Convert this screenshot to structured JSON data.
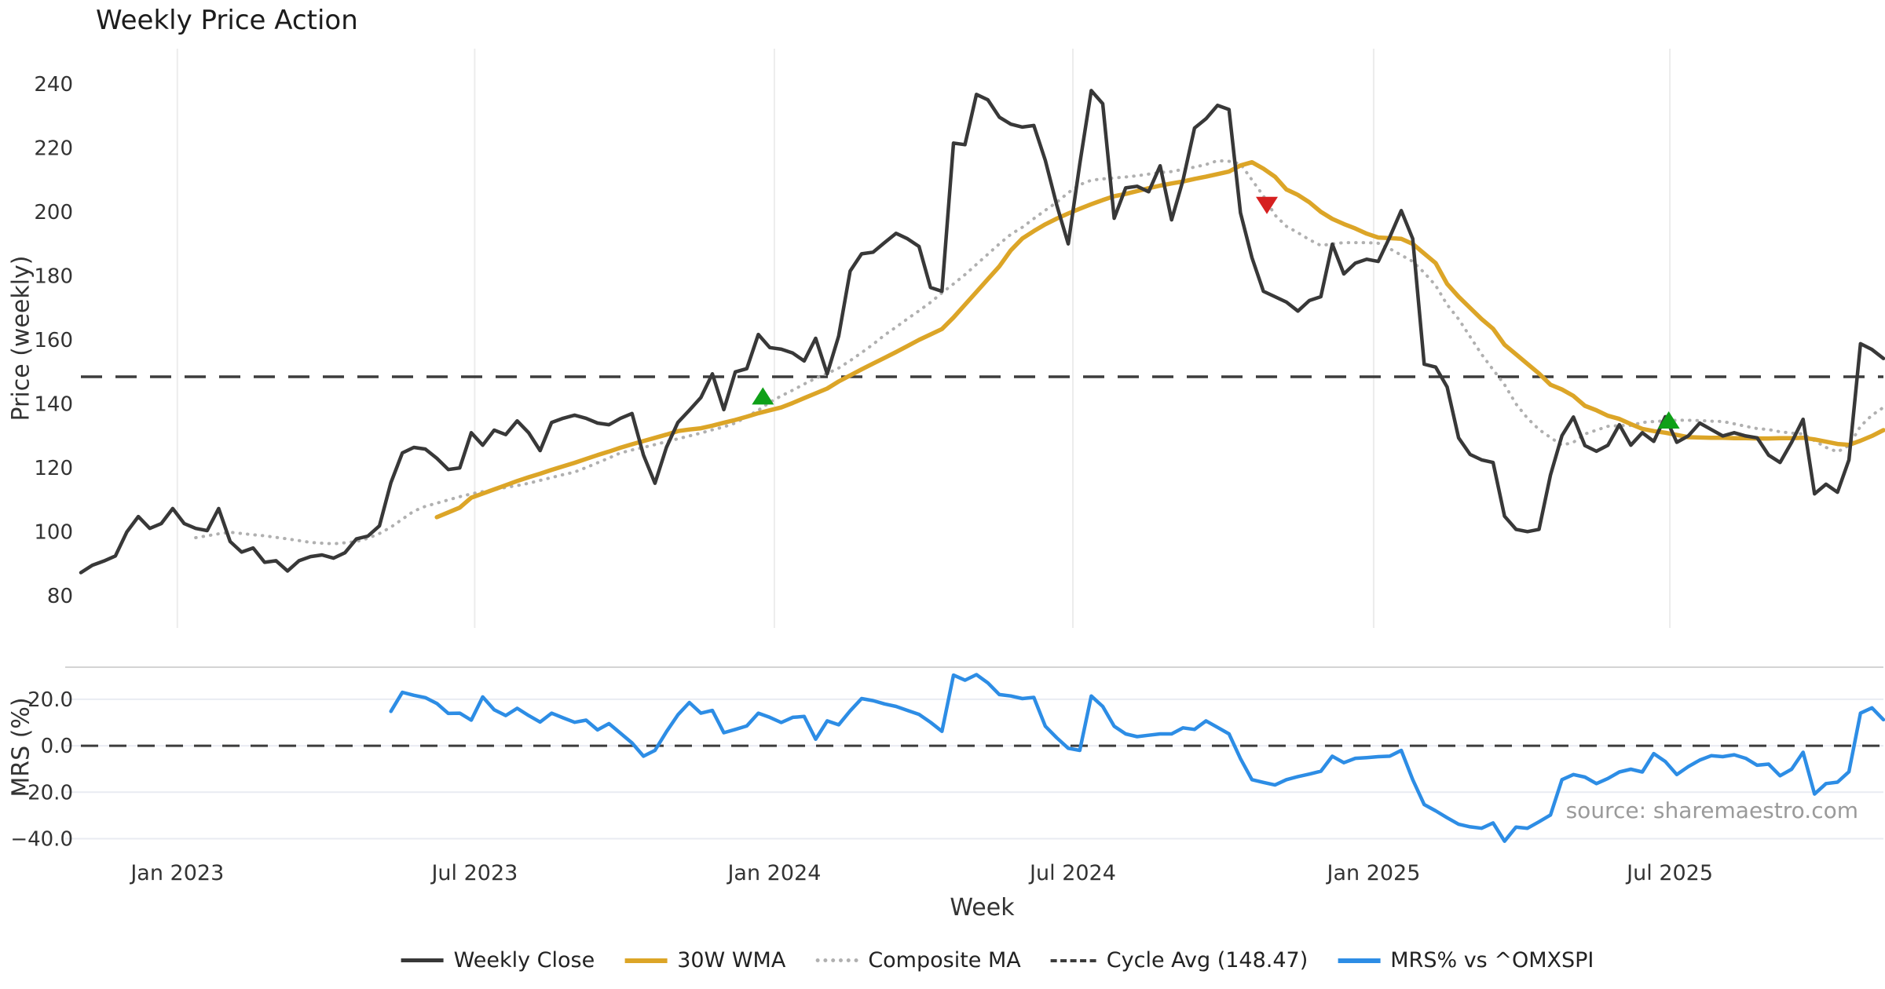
{
  "title": "Weekly Price Action",
  "source_note": "source: sharemaestro.com",
  "colors": {
    "close": "#383838",
    "wma": "#dca527",
    "composite": "#b0b0b0",
    "cycle_avg": "#3c3c3c",
    "mrs": "#2d8de5",
    "buy_marker": "#0fa018",
    "sell_marker": "#d62020",
    "grid_top": "#ececec",
    "grid_bottom": "#e9ebf2",
    "spine": "#d4d4d4",
    "tick_text": "#333333",
    "source_text": "#9a9a9a"
  },
  "legend": [
    {
      "label": "Weekly Close",
      "style": "solid",
      "color": "#383838"
    },
    {
      "label": "30W WMA",
      "style": "solid",
      "color": "#dca527"
    },
    {
      "label": "Composite MA",
      "style": "dotted",
      "color": "#b0b0b0"
    },
    {
      "label": "Cycle Avg (148.47)",
      "style": "dashed",
      "color": "#3c3c3c"
    },
    {
      "label": "MRS% vs ^OMXSPI",
      "style": "solid",
      "color": "#2d8de5"
    }
  ],
  "chart_data": [
    {
      "type": "line",
      "panel": "price",
      "title": "Weekly Price Action",
      "xlabel": "Week",
      "ylabel": "Price (weekly)",
      "x_start_date": "2022-11-06",
      "x_interval": "weekly",
      "ylim": [
        70,
        251
      ],
      "yticks": [
        240,
        220,
        200,
        180,
        160,
        140,
        120,
        100,
        80
      ],
      "xticks": [
        {
          "label": "Jan 2023",
          "week": 8.4
        },
        {
          "label": "Jul 2023",
          "week": 34.3
        },
        {
          "label": "Jan 2024",
          "week": 60.4
        },
        {
          "label": "Jul 2024",
          "week": 86.4
        },
        {
          "label": "Jan 2025",
          "week": 112.6
        },
        {
          "label": "Jul 2025",
          "week": 138.4
        }
      ],
      "cycle_avg": 148.47,
      "grid": "vertical",
      "legend_position": "bottom",
      "series": [
        {
          "name": "Weekly Close",
          "start_week": 0,
          "values": [
            87.3,
            89.6,
            90.9,
            92.5,
            100.0,
            104.8,
            101.1,
            102.6,
            107.3,
            102.6,
            101.1,
            100.4,
            107.3,
            97.0,
            93.7,
            95.0,
            90.5,
            91.0,
            87.8,
            91.0,
            92.3,
            92.8,
            91.8,
            93.5,
            97.8,
            98.7,
            101.9,
            115.4,
            124.7,
            126.4,
            125.9,
            123.0,
            119.5,
            120.0,
            131.0,
            127.1,
            131.8,
            130.4,
            134.7,
            131.0,
            125.4,
            134.2,
            135.5,
            136.5,
            135.5,
            134.0,
            133.5,
            135.5,
            137.0,
            124.0,
            115.2,
            126.4,
            134.2,
            138.0,
            142.0,
            149.4,
            138.2,
            150.0,
            151.0,
            161.7,
            157.6,
            157.1,
            155.9,
            153.4,
            160.5,
            149.4,
            161.2,
            181.5,
            186.9,
            187.4,
            190.4,
            193.3,
            191.6,
            189.2,
            176.4,
            175.2,
            221.5,
            221.0,
            236.7,
            235.0,
            229.6,
            227.4,
            226.5,
            227.0,
            216.1,
            202.1,
            190.0,
            215.0,
            237.9,
            233.8,
            198.0,
            207.5,
            208.0,
            206.3,
            214.4,
            197.5,
            210.0,
            226.2,
            229.1,
            233.3,
            232.0,
            199.7,
            185.7,
            175.2,
            173.5,
            171.8,
            169.0,
            172.3,
            173.5,
            189.9,
            180.6,
            184.0,
            185.2,
            184.5,
            192.1,
            200.4,
            191.6,
            152.4,
            151.5,
            145.3,
            129.4,
            124.2,
            122.5,
            121.7,
            104.9,
            100.8,
            100.1,
            100.8,
            117.8,
            130.1,
            135.9,
            127.0,
            125.2,
            127.1,
            133.5,
            127.1,
            131.0,
            128.3,
            136.0,
            128.0,
            130.0,
            134.0,
            132.0,
            130.0,
            131.0,
            130.0,
            129.4,
            124.0,
            121.7,
            128.0,
            135.2,
            111.9,
            114.9,
            112.4,
            122.5,
            158.8,
            157.0,
            154.2
          ]
        },
        {
          "name": "30W WMA",
          "start_week": 31,
          "values": [
            104.6,
            106.1,
            107.6,
            110.7,
            112.0,
            113.3,
            114.6,
            115.9,
            117.1,
            118.2,
            119.4,
            120.5,
            121.6,
            122.8,
            124.0,
            125.1,
            126.3,
            127.4,
            128.4,
            129.4,
            130.4,
            131.5,
            132.0,
            132.4,
            133.2,
            134.1,
            135.0,
            136.0,
            137.1,
            138.0,
            138.9,
            140.3,
            141.8,
            143.3,
            144.8,
            147.0,
            148.9,
            150.8,
            152.6,
            154.4,
            156.2,
            158.1,
            160.0,
            161.7,
            163.4,
            167.0,
            171.0,
            175.0,
            179.0,
            183.0,
            188.0,
            191.7,
            194.0,
            196.1,
            197.9,
            199.5,
            201.0,
            202.4,
            203.7,
            204.9,
            205.6,
            206.5,
            207.4,
            208.2,
            208.9,
            209.5,
            210.3,
            211.0,
            211.8,
            212.6,
            214.5,
            215.5,
            213.5,
            211.0,
            207.0,
            205.3,
            203.0,
            200.0,
            197.8,
            196.2,
            194.8,
            193.2,
            192.0,
            191.8,
            191.6,
            190.0,
            187.0,
            184.0,
            177.5,
            173.5,
            170.0,
            166.5,
            163.5,
            158.5,
            155.5,
            152.5,
            149.5,
            146.0,
            144.5,
            142.5,
            139.4,
            138.0,
            136.3,
            135.3,
            133.7,
            132.2,
            131.5,
            131.0,
            130.3,
            129.6,
            129.5,
            129.4,
            129.4,
            129.3,
            129.3,
            129.2,
            129.2,
            129.3,
            129.3,
            129.4,
            128.9,
            128.2,
            127.5,
            127.2,
            128.5,
            130.0,
            131.8
          ]
        },
        {
          "name": "Composite MA",
          "start_week": 10,
          "values": [
            98.2,
            98.8,
            99.4,
            99.9,
            99.5,
            99.1,
            98.8,
            98.3,
            97.8,
            97.3,
            96.7,
            96.5,
            96.3,
            96.6,
            97.0,
            98.0,
            99.5,
            101.5,
            104.0,
            106.5,
            108.0,
            109.0,
            110.0,
            111.0,
            111.9,
            112.6,
            113.2,
            113.9,
            114.5,
            115.2,
            116.1,
            117.0,
            117.9,
            118.7,
            120.1,
            121.6,
            123.1,
            124.7,
            125.6,
            126.4,
            127.3,
            128.2,
            129.1,
            130.0,
            130.9,
            131.9,
            132.8,
            134.0,
            136.0,
            138.0,
            140.5,
            142.5,
            144.3,
            146.2,
            148.0,
            149.5,
            151.2,
            153.5,
            156.0,
            158.6,
            161.5,
            164.0,
            166.6,
            169.1,
            171.7,
            174.7,
            177.5,
            180.4,
            183.6,
            186.8,
            190.0,
            193.0,
            195.2,
            197.9,
            200.5,
            203.0,
            206.0,
            208.5,
            209.9,
            210.3,
            210.6,
            210.9,
            211.3,
            211.8,
            212.3,
            212.6,
            213.3,
            214.0,
            214.8,
            216.0,
            215.8,
            215.0,
            210.0,
            205.0,
            199.0,
            195.5,
            193.5,
            191.3,
            189.5,
            190.0,
            190.4,
            190.4,
            190.4,
            190.2,
            188.5,
            186.5,
            184.5,
            181.0,
            177.0,
            171.0,
            166.5,
            161.0,
            155.5,
            150.7,
            146.0,
            140.0,
            135.5,
            132.0,
            129.5,
            127.1,
            128.0,
            130.6,
            131.8,
            133.0,
            133.2,
            133.3,
            134.2,
            134.5,
            134.7,
            134.9,
            134.9,
            134.8,
            134.6,
            134.5,
            133.8,
            133.0,
            132.3,
            132.0,
            131.3,
            130.9,
            130.6,
            128.5,
            126.4,
            125.0,
            127.0,
            133.0,
            136.5,
            138.9
          ]
        }
      ],
      "signals": [
        {
          "type": "buy",
          "date": "2023-12-24",
          "week": 59.4,
          "value": 142.0
        },
        {
          "type": "sell",
          "date": "2024-10-27",
          "week": 103.3,
          "value": 202.5
        },
        {
          "type": "buy",
          "date": "2025-07-06",
          "week": 138.3,
          "value": 134.5
        }
      ]
    },
    {
      "type": "line",
      "panel": "mrs",
      "xlabel": "Week",
      "ylabel": "MRS (%)",
      "ylim": [
        -42.2,
        33.8
      ],
      "yticks": [
        20,
        0,
        -20,
        -40
      ],
      "ytick_labels": [
        "20.0",
        "0.0",
        "−20.0",
        "−40.0"
      ],
      "zero_line": 0,
      "grid": "horizontal",
      "series": [
        {
          "name": "MRS% vs ^OMXSPI",
          "start_week": 27,
          "values": [
            14.8,
            23.0,
            21.7,
            20.7,
            18.2,
            13.9,
            14.0,
            11.0,
            21.0,
            15.5,
            13.0,
            16.1,
            13.0,
            10.2,
            14.0,
            12.0,
            10.1,
            11.0,
            6.8,
            9.5,
            5.4,
            1.2,
            -4.5,
            -2.0,
            6.0,
            13.3,
            18.6,
            14.0,
            15.2,
            5.6,
            7.0,
            8.5,
            14.0,
            12.2,
            10.0,
            12.2,
            12.6,
            2.8,
            10.7,
            9.0,
            15.0,
            20.3,
            19.4,
            18.0,
            16.9,
            15.2,
            13.5,
            10.1,
            6.2,
            30.4,
            28.2,
            30.6,
            27.0,
            22.0,
            21.4,
            20.3,
            20.8,
            8.4,
            3.4,
            -1.1,
            -2.0,
            21.4,
            16.9,
            8.4,
            5.1,
            3.9,
            4.5,
            5.1,
            5.1,
            7.7,
            7.0,
            10.7,
            7.9,
            5.1,
            -5.6,
            -14.6,
            -15.8,
            -16.9,
            -14.6,
            -13.3,
            -12.2,
            -11.0,
            -4.5,
            -7.3,
            -5.4,
            -5.1,
            -4.7,
            -4.5,
            -2.0,
            -14.6,
            -25.3,
            -28.0,
            -31.0,
            -33.8,
            -34.9,
            -35.5,
            -33.2,
            -41.1,
            -35.0,
            -35.5,
            -32.7,
            -29.8,
            -14.6,
            -12.4,
            -13.5,
            -16.3,
            -14.1,
            -11.3,
            -10.1,
            -11.3,
            -3.4,
            -6.8,
            -12.4,
            -9.0,
            -6.2,
            -4.3,
            -4.7,
            -3.9,
            -5.4,
            -8.4,
            -7.9,
            -12.9,
            -10.1,
            -2.8,
            -20.8,
            -16.3,
            -15.7,
            -11.2,
            14.0,
            16.3,
            11.2
          ]
        }
      ]
    }
  ]
}
